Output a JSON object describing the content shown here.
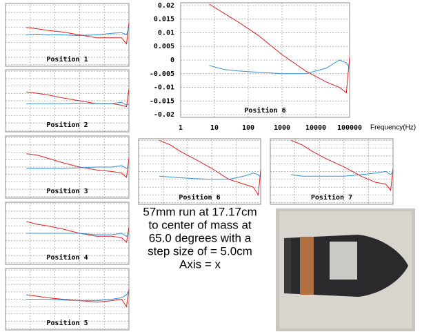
{
  "chart_data": [
    {
      "type": "line",
      "title": "Position 1",
      "x": [
        7,
        20,
        50,
        200,
        1000,
        5000,
        20000,
        50000,
        80000,
        100000
      ],
      "log_x": true,
      "grid": true,
      "tick_labels": false,
      "xlim": [
        1,
        100000
      ],
      "xticks": [
        1,
        10,
        100,
        1000,
        10000,
        100000
      ],
      "ylim": [
        -0.021,
        0.021
      ],
      "yticks": [
        -0.02,
        -0.015,
        -0.01,
        -0.005,
        0,
        0.005,
        0.01,
        0.015,
        0.02
      ],
      "series": [
        {
          "color": "#e02020",
          "values": [
            0.005,
            0.004,
            0.003,
            0.002,
            0.0,
            -0.002,
            -0.002,
            -0.002,
            -0.006,
            0.008
          ]
        },
        {
          "color": "#3090e0",
          "values": [
            0.0,
            0.0005,
            0.0,
            0.0,
            -0.0005,
            0.0,
            0.001,
            0.0015,
            0.0,
            0.005
          ]
        }
      ]
    },
    {
      "type": "line",
      "title": "Position 2",
      "x": [
        7,
        20,
        50,
        200,
        1000,
        5000,
        20000,
        50000,
        80000,
        100000
      ],
      "log_x": true,
      "grid": true,
      "tick_labels": false,
      "xlim": [
        1,
        100000
      ],
      "xticks": [
        1,
        10,
        100,
        1000,
        10000,
        100000
      ],
      "ylim": [
        -0.021,
        0.021
      ],
      "yticks": [
        -0.02,
        -0.015,
        -0.01,
        -0.005,
        0,
        0.005,
        0.01,
        0.015,
        0.02
      ],
      "series": [
        {
          "color": "#e02020",
          "values": [
            0.006,
            0.005,
            0.004,
            0.002,
            0.0,
            -0.002,
            -0.002,
            -0.003,
            -0.004,
            0.008
          ]
        },
        {
          "color": "#3090e0",
          "values": [
            -0.002,
            -0.002,
            -0.002,
            -0.002,
            -0.0015,
            -0.002,
            -0.002,
            -0.001,
            -0.003,
            -0.002
          ]
        }
      ]
    },
    {
      "type": "line",
      "title": "Position 3",
      "x": [
        7,
        20,
        50,
        200,
        1000,
        5000,
        20000,
        50000,
        80000,
        100000
      ],
      "log_x": true,
      "grid": true,
      "tick_labels": false,
      "xlim": [
        1,
        100000
      ],
      "xticks": [
        1,
        10,
        100,
        1000,
        10000,
        100000
      ],
      "ylim": [
        -0.021,
        0.021
      ],
      "yticks": [
        -0.02,
        -0.015,
        -0.01,
        -0.005,
        0,
        0.005,
        0.01,
        0.015,
        0.02
      ],
      "series": [
        {
          "color": "#e02020",
          "values": [
            0.009,
            0.008,
            0.006,
            0.003,
            0.0,
            -0.002,
            -0.003,
            -0.004,
            -0.007,
            0.006
          ]
        },
        {
          "color": "#3090e0",
          "values": [
            -0.001,
            -0.001,
            -0.001,
            -0.001,
            -0.0005,
            0.0,
            0.0,
            0.001,
            -0.001,
            0.0
          ]
        }
      ]
    },
    {
      "type": "line",
      "title": "Position 4",
      "x": [
        7,
        20,
        50,
        200,
        1000,
        5000,
        20000,
        50000,
        80000,
        100000
      ],
      "log_x": true,
      "grid": true,
      "tick_labels": false,
      "xlim": [
        1,
        100000
      ],
      "xticks": [
        1,
        10,
        100,
        1000,
        10000,
        100000
      ],
      "ylim": [
        -0.021,
        0.021
      ],
      "yticks": [
        -0.02,
        -0.015,
        -0.01,
        -0.005,
        0,
        0.005,
        0.01,
        0.015,
        0.02
      ],
      "series": [
        {
          "color": "#e02020",
          "values": [
            0.008,
            0.006,
            0.005,
            0.003,
            0.0,
            -0.002,
            -0.002,
            -0.003,
            -0.006,
            0.004
          ]
        },
        {
          "color": "#3090e0",
          "values": [
            0.0,
            0.0,
            0.0,
            0.0,
            0.0,
            -0.001,
            -0.001,
            0.0,
            -0.002,
            0.0
          ]
        }
      ]
    },
    {
      "type": "line",
      "title": "Position 5",
      "x": [
        7,
        20,
        50,
        200,
        1000,
        5000,
        20000,
        50000,
        80000,
        100000
      ],
      "log_x": true,
      "grid": true,
      "tick_labels": false,
      "xlim": [
        1,
        100000
      ],
      "xticks": [
        1,
        10,
        100,
        1000,
        10000,
        100000
      ],
      "ylim": [
        -0.021,
        0.021
      ],
      "yticks": [
        -0.02,
        -0.015,
        -0.01,
        -0.005,
        0,
        0.005,
        0.01,
        0.015,
        0.02
      ],
      "series": [
        {
          "color": "#e02020",
          "values": [
            0.003,
            0.002,
            0.001,
            0.0,
            -0.001,
            -0.002,
            -0.001,
            0.0,
            -0.005,
            0.007
          ]
        },
        {
          "color": "#3090e0",
          "values": [
            0.0,
            0.0,
            0.0,
            -0.0005,
            -0.001,
            -0.001,
            0.0,
            0.001,
            0.003,
            0.006
          ]
        }
      ]
    },
    {
      "type": "line",
      "title": "Position 6",
      "x_label": "Frequency(Hz)",
      "x": [
        7,
        20,
        50,
        200,
        1000,
        5000,
        20000,
        50000,
        80000,
        100000
      ],
      "log_x": true,
      "grid": true,
      "tick_labels": true,
      "xlim": [
        1,
        100000
      ],
      "xticks": [
        1,
        10,
        100,
        1000,
        10000,
        100000
      ],
      "ylim": [
        -0.021,
        0.021
      ],
      "yticks": [
        -0.02,
        -0.015,
        -0.01,
        -0.005,
        0,
        0.005,
        0.01,
        0.015,
        0.02
      ],
      "series": [
        {
          "color": "#e02020",
          "values": [
            0.0205,
            0.017,
            0.014,
            0.009,
            0.002,
            -0.004,
            -0.008,
            -0.01,
            -0.012,
            0.001
          ]
        },
        {
          "color": "#3090e0",
          "values": [
            -0.002,
            -0.0035,
            -0.004,
            -0.0045,
            -0.005,
            -0.005,
            -0.003,
            0.0,
            -0.001,
            -0.003
          ]
        }
      ]
    },
    {
      "type": "line",
      "title": "Position 6",
      "x": [
        7,
        20,
        50,
        200,
        1000,
        5000,
        20000,
        50000,
        80000,
        100000
      ],
      "log_x": true,
      "grid": true,
      "tick_labels": false,
      "xlim": [
        1,
        100000
      ],
      "xticks": [
        1,
        10,
        100,
        1000,
        10000,
        100000
      ],
      "ylim": [
        -0.021,
        0.021
      ],
      "yticks": [
        -0.02,
        -0.015,
        -0.01,
        -0.005,
        0,
        0.005,
        0.01,
        0.015,
        0.02
      ],
      "series": [
        {
          "color": "#e02020",
          "values": [
            0.02,
            0.017,
            0.013,
            0.008,
            0.002,
            -0.005,
            -0.008,
            -0.01,
            -0.015,
            0.001
          ]
        },
        {
          "color": "#3090e0",
          "values": [
            -0.003,
            -0.0035,
            -0.004,
            -0.0045,
            -0.005,
            -0.005,
            -0.003,
            -0.001,
            -0.002,
            -0.004
          ]
        }
      ]
    },
    {
      "type": "line",
      "title": "Position 7",
      "x": [
        7,
        20,
        50,
        200,
        1000,
        5000,
        20000,
        50000,
        80000,
        100000
      ],
      "log_x": true,
      "grid": true,
      "tick_labels": false,
      "xlim": [
        1,
        100000
      ],
      "xticks": [
        1,
        10,
        100,
        1000,
        10000,
        100000
      ],
      "ylim": [
        -0.021,
        0.021
      ],
      "yticks": [
        -0.02,
        -0.015,
        -0.01,
        -0.005,
        0,
        0.005,
        0.01,
        0.015,
        0.02
      ],
      "series": [
        {
          "color": "#e02020",
          "values": [
            0.02,
            0.017,
            0.013,
            0.008,
            0.003,
            -0.003,
            -0.007,
            -0.008,
            -0.012,
            0.002
          ]
        },
        {
          "color": "#3090e0",
          "values": [
            -0.002,
            -0.003,
            -0.003,
            -0.003,
            -0.003,
            -0.002,
            -0.001,
            0.0,
            -0.002,
            0.0
          ]
        }
      ]
    }
  ],
  "caption": [
    "57mm run at 17.17cm",
    "to center of mass at",
    "65.0 degrees with a",
    "step size of = 5.0cm",
    "Axis = x"
  ]
}
